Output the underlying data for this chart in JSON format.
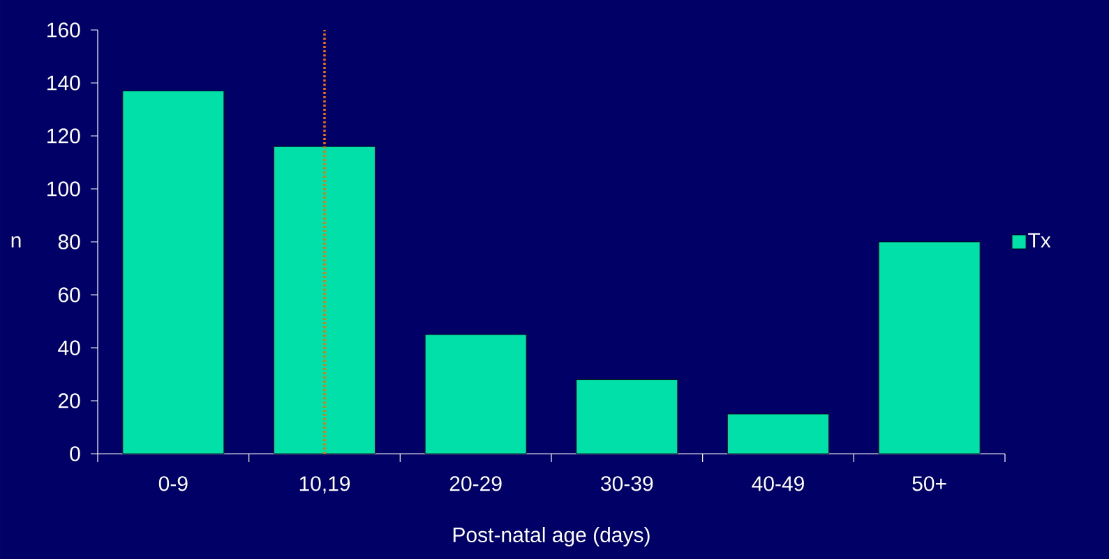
{
  "chart_data": {
    "type": "bar",
    "categories": [
      "0-9",
      "10,19",
      "20-29",
      "30-39",
      "40-49",
      "50+"
    ],
    "series": [
      {
        "name": "Tx",
        "color": "#00e0a8",
        "values": [
          137,
          116,
          45,
          28,
          15,
          80
        ]
      }
    ],
    "xlabel": "Post-natal age (days)",
    "ylabel": "n",
    "ylim": [
      0,
      160
    ],
    "yticks": [
      0,
      20,
      40,
      60,
      80,
      100,
      120,
      140,
      160
    ],
    "legend": "right",
    "ref_lines": [
      {
        "axis": "x",
        "value": "10,19",
        "color": "#ff6a00",
        "line_style": "dotted"
      }
    ]
  }
}
